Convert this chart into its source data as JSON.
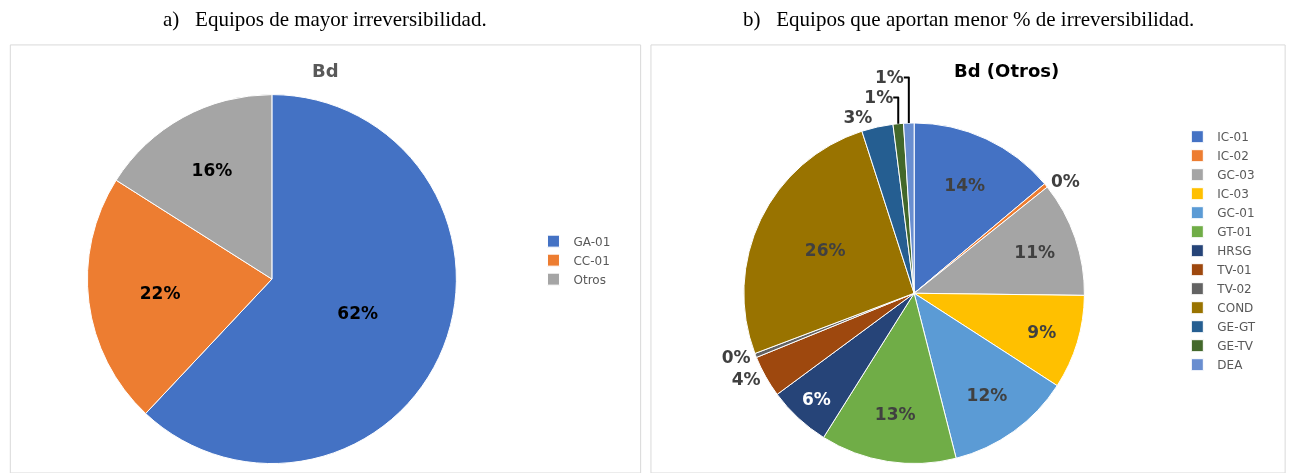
{
  "chart_data": [
    {
      "type": "pie",
      "title": "Bd",
      "annotations": [
        "a)   Equipos de mayor irreversibilidad."
      ],
      "categories": [
        "GA-01",
        "CC-01",
        "Otros"
      ],
      "values": [
        62,
        22,
        16
      ],
      "value_labels": [
        "62%",
        "22%",
        "16%"
      ],
      "colors": [
        "#4472c4",
        "#ed7d31",
        "#a5a5a5"
      ],
      "legend": "right"
    },
    {
      "type": "pie",
      "title": "Bd (Otros)",
      "annotations": [
        "b)   Equipos que aportan menor % de irreversibilidad."
      ],
      "categories": [
        "IC-01",
        "IC-02",
        "GC-03",
        "IC-03",
        "GC-01",
        "GT-01",
        "HRSG",
        "TV-01",
        "TV-02",
        "COND",
        "GE-GT",
        "GE-TV",
        "DEA"
      ],
      "values": [
        14,
        0.4,
        11,
        9,
        12,
        13,
        6,
        4,
        0.4,
        26,
        3,
        1,
        1
      ],
      "value_labels": [
        "14%",
        "0%",
        "11%",
        "9%",
        "12%",
        "13%",
        "6%",
        "4%",
        "0%",
        "26%",
        "3%",
        "1%",
        "1%"
      ],
      "colors": [
        "#4472c4",
        "#ed7d31",
        "#a5a5a5",
        "#ffc000",
        "#5b9bd5",
        "#70ad47",
        "#264478",
        "#9e480e",
        "#636363",
        "#997300",
        "#255e91",
        "#43682b",
        "#698ed0"
      ],
      "legend": "right"
    }
  ]
}
